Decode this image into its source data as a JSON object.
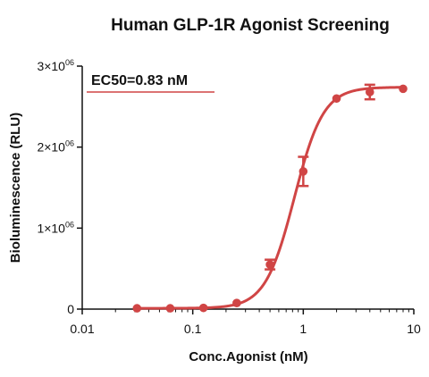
{
  "chart_data": {
    "type": "scatter",
    "title": "Human GLP-1R Agonist Screening",
    "xlabel": "Conc.Agonist (nM)",
    "ylabel": "Bioluminescence (RLU)",
    "x_scale": "log",
    "xlim": [
      0.01,
      10
    ],
    "ylim": [
      0,
      3000000
    ],
    "x_tick_labels": [
      "0.01",
      "0.1",
      "1",
      "10"
    ],
    "y_tick_values": [
      0,
      1000000,
      2000000,
      3000000
    ],
    "y_tick_labels": [
      {
        "base": "0",
        "exp": ""
      },
      {
        "base": "1×10",
        "exp": "06"
      },
      {
        "base": "2×10",
        "exp": "06"
      },
      {
        "base": "3×10",
        "exp": "06"
      }
    ],
    "annotation": "EC50=0.83 nM",
    "color": "#d04545",
    "legend": "none",
    "grid": false,
    "series": [
      {
        "x": [
          0.0313,
          0.0625,
          0.125,
          0.25,
          0.5,
          1,
          2,
          4,
          8
        ],
        "y": [
          10000,
          10000,
          15000,
          75000,
          550000,
          1700000,
          2600000,
          2680000,
          2720000
        ],
        "error": [
          0,
          0,
          0,
          0,
          60000,
          180000,
          0,
          90000,
          0
        ]
      }
    ],
    "fit": {
      "bottom": 10000,
      "top": 2740000,
      "ec50": 0.83,
      "hill": 3.3
    }
  }
}
